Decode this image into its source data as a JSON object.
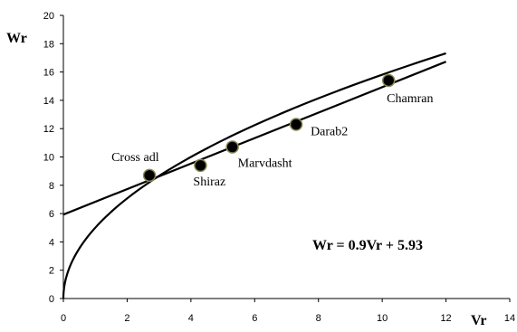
{
  "chart_data": {
    "type": "scatter",
    "xlabel": "Vr",
    "ylabel": "Wr",
    "xlim": [
      0,
      14
    ],
    "ylim": [
      0,
      20
    ],
    "xticks": [
      0,
      2,
      4,
      6,
      8,
      10,
      12,
      14
    ],
    "yticks": [
      0,
      2,
      4,
      6,
      8,
      10,
      12,
      14,
      16,
      18,
      20
    ],
    "grid": false,
    "points": [
      {
        "label": "Cross adl",
        "x": 2.7,
        "y": 8.7
      },
      {
        "label": "Shiraz",
        "x": 4.3,
        "y": 9.4
      },
      {
        "label": "Marvdasht",
        "x": 5.3,
        "y": 10.7
      },
      {
        "label": "Darab2",
        "x": 7.3,
        "y": 12.3
      },
      {
        "label": "Chamran",
        "x": 10.2,
        "y": 15.4
      }
    ],
    "fit_line": {
      "slope": 0.9,
      "intercept": 5.93,
      "x_range": [
        0,
        12
      ]
    },
    "power_curve": {
      "coefficient": 5.0,
      "exponent": 0.5,
      "x_range": [
        0,
        12
      ]
    },
    "equation": "Wr = 0.9Vr + 5.93",
    "colors": {
      "marker_fill": "#000000",
      "marker_outline": "#8a8a55",
      "line": "#000000"
    }
  }
}
